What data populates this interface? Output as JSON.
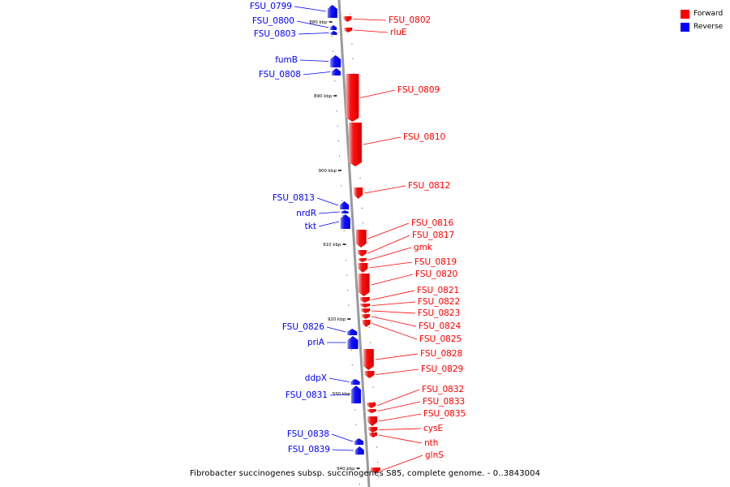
{
  "legend": {
    "forward_label": "Forward",
    "reverse_label": "Reverse",
    "forward_color": "#ff0000",
    "reverse_color": "#0000ff"
  },
  "caption": "Fibrobacter succinogenes subsp. succinogenes S85, complete genome. - 0..3843004",
  "axis": {
    "tick_labels": [
      "880 kbp",
      "890 kbp",
      "900 kbp",
      "910 kbp",
      "920 kbp",
      "930 kbp",
      "940 kbp"
    ]
  },
  "genes": [
    {
      "name": "FSU_0799",
      "strand": "reverse"
    },
    {
      "name": "FSU_0800",
      "strand": "reverse"
    },
    {
      "name": "FSU_0803",
      "strand": "reverse"
    },
    {
      "name": "fumB",
      "strand": "reverse"
    },
    {
      "name": "FSU_0808",
      "strand": "reverse"
    },
    {
      "name": "FSU_0813",
      "strand": "reverse"
    },
    {
      "name": "nrdR",
      "strand": "reverse"
    },
    {
      "name": "tkt",
      "strand": "reverse"
    },
    {
      "name": "FSU_0826",
      "strand": "reverse"
    },
    {
      "name": "priA",
      "strand": "reverse"
    },
    {
      "name": "ddpX",
      "strand": "reverse"
    },
    {
      "name": "FSU_0831",
      "strand": "reverse"
    },
    {
      "name": "FSU_0838",
      "strand": "reverse"
    },
    {
      "name": "FSU_0839",
      "strand": "reverse"
    },
    {
      "name": "FSU_0802",
      "strand": "forward"
    },
    {
      "name": "rluE",
      "strand": "forward"
    },
    {
      "name": "FSU_0809",
      "strand": "forward"
    },
    {
      "name": "FSU_0810",
      "strand": "forward"
    },
    {
      "name": "FSU_0812",
      "strand": "forward"
    },
    {
      "name": "FSU_0816",
      "strand": "forward"
    },
    {
      "name": "FSU_0817",
      "strand": "forward"
    },
    {
      "name": "gmk",
      "strand": "forward"
    },
    {
      "name": "FSU_0819",
      "strand": "forward"
    },
    {
      "name": "FSU_0820",
      "strand": "forward"
    },
    {
      "name": "FSU_0821",
      "strand": "forward"
    },
    {
      "name": "FSU_0822",
      "strand": "forward"
    },
    {
      "name": "FSU_0823",
      "strand": "forward"
    },
    {
      "name": "FSU_0824",
      "strand": "forward"
    },
    {
      "name": "FSU_0825",
      "strand": "forward"
    },
    {
      "name": "FSU_0828",
      "strand": "forward"
    },
    {
      "name": "FSU_0829",
      "strand": "forward"
    },
    {
      "name": "FSU_0832",
      "strand": "forward"
    },
    {
      "name": "FSU_0833",
      "strand": "forward"
    },
    {
      "name": "FSU_0835",
      "strand": "forward"
    },
    {
      "name": "cysE",
      "strand": "forward"
    },
    {
      "name": "nth",
      "strand": "forward"
    },
    {
      "name": "glnS",
      "strand": "forward"
    }
  ]
}
